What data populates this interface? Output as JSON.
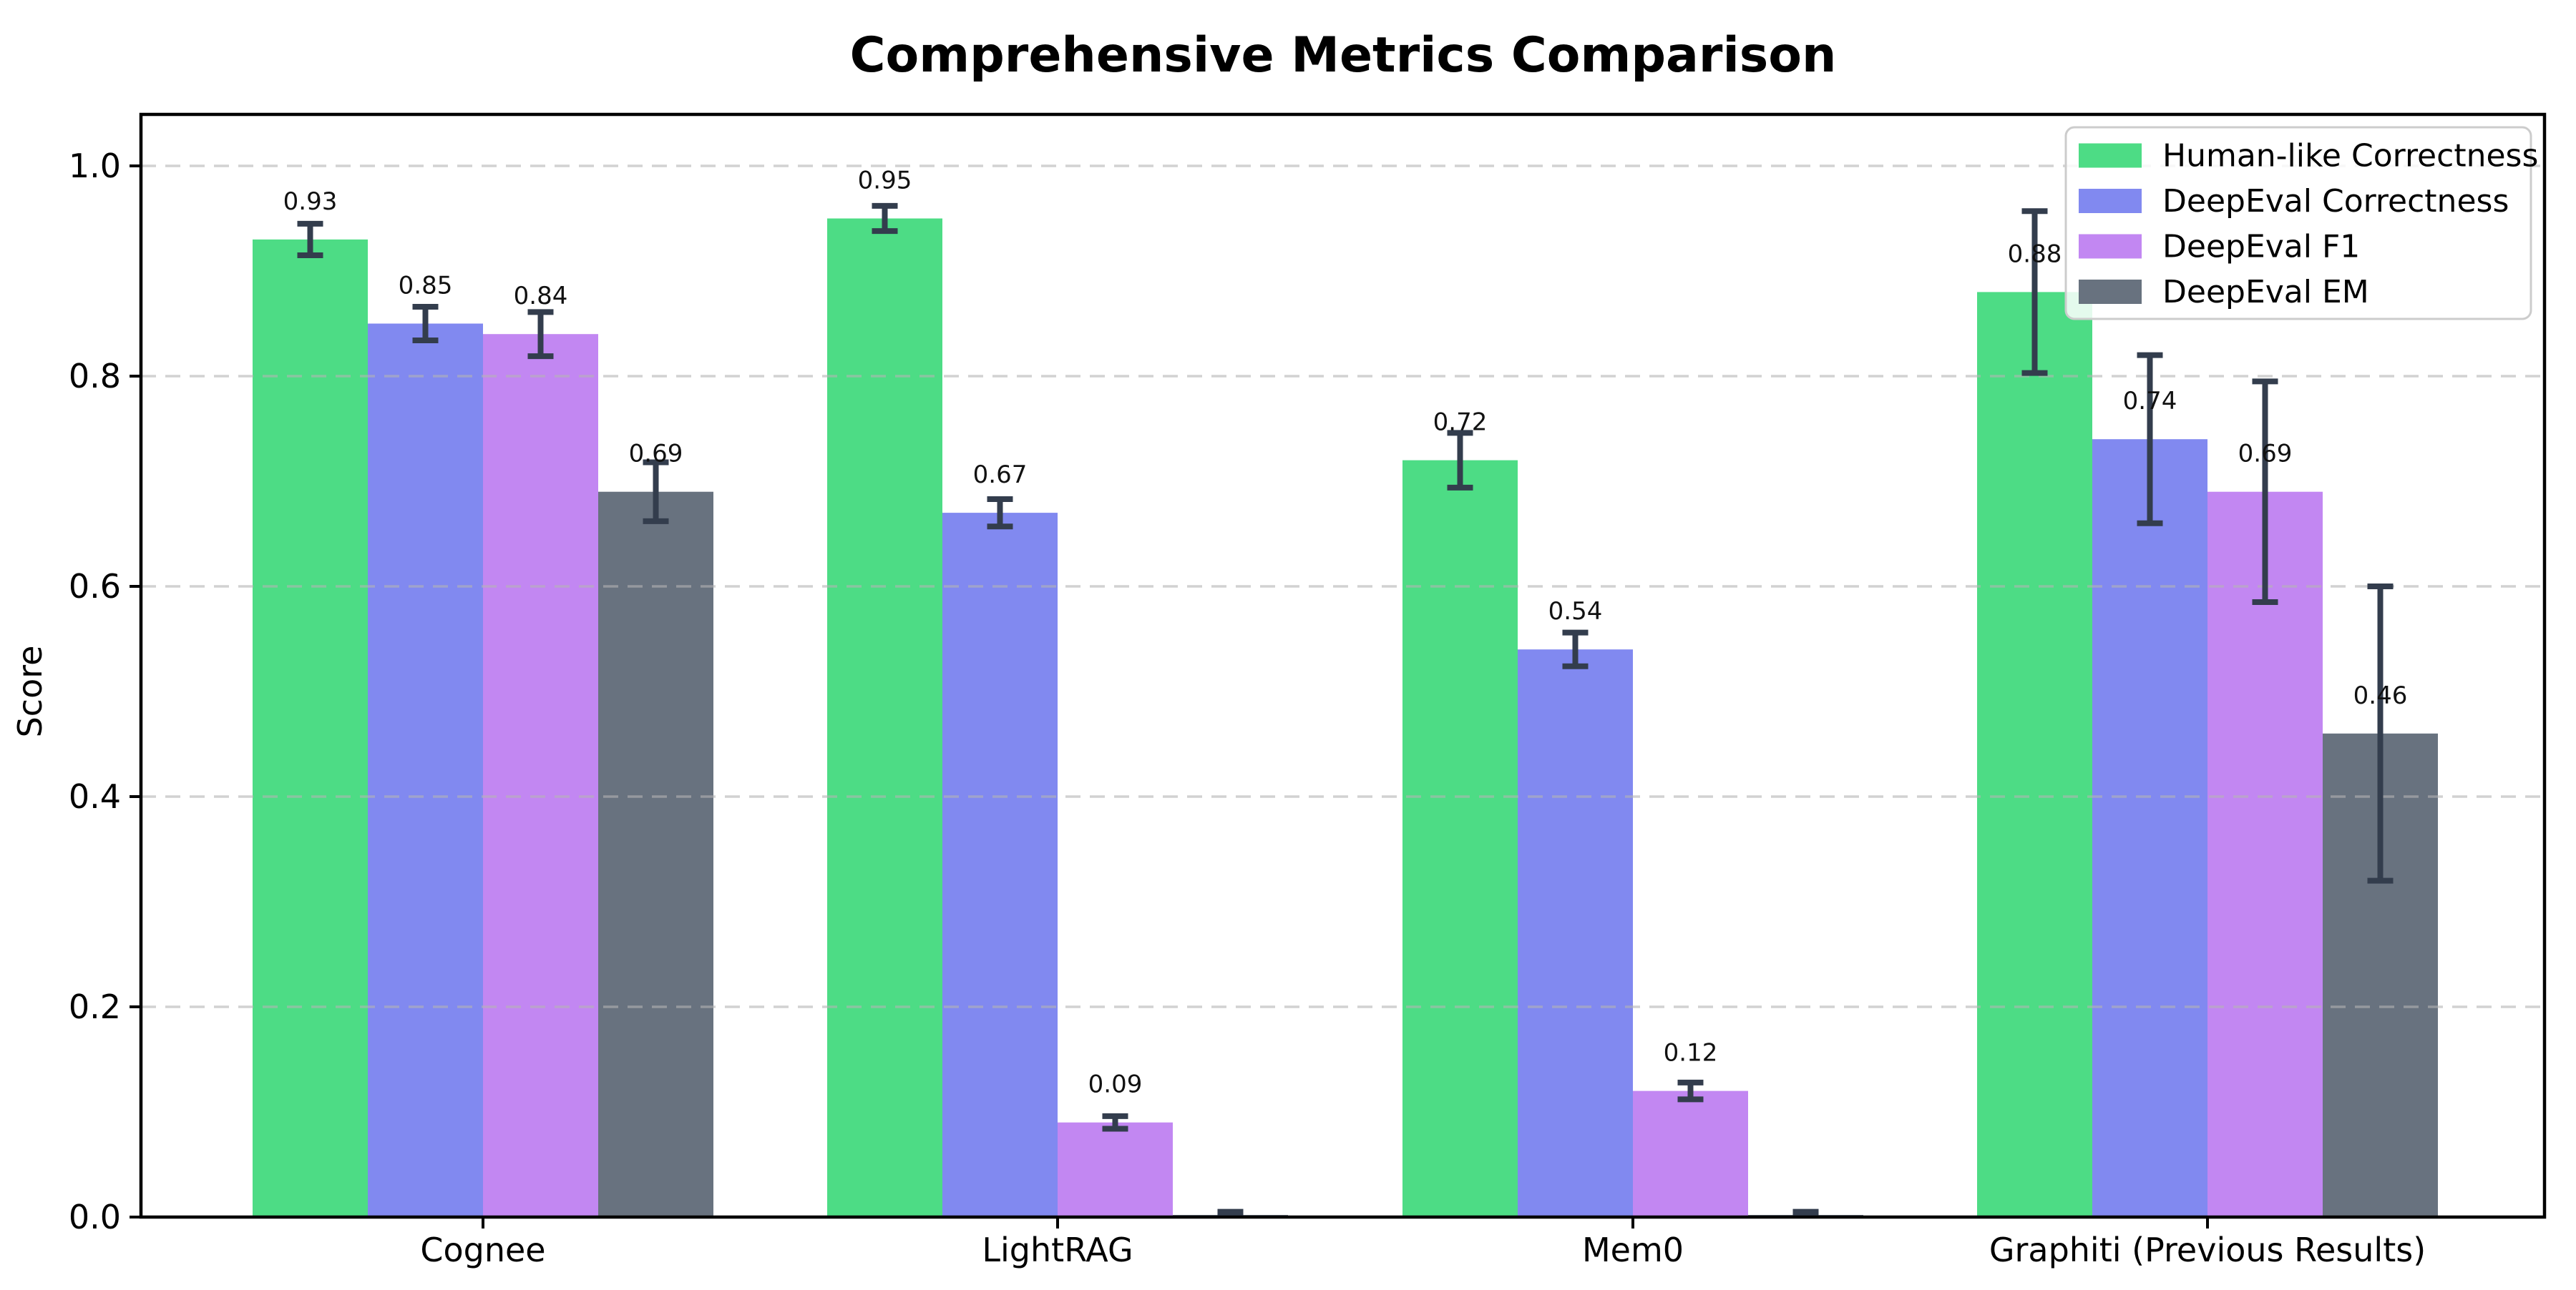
{
  "title": "Comprehensive Metrics Comparison",
  "chart_data": {
    "type": "bar",
    "title": "Comprehensive Metrics Comparison",
    "xlabel": "",
    "ylabel": "Score",
    "ylim": [
      0.0,
      1.05
    ],
    "yticks": [
      "0.0",
      "0.2",
      "0.4",
      "0.6",
      "0.8",
      "1.0"
    ],
    "grid": "horizontal-dashed",
    "legend_position": "upper-right",
    "categories": [
      "Cognee",
      "LightRAG",
      "Mem0",
      "Graphiti (Previous Results)"
    ],
    "series": [
      {
        "name": "Human-like Correctness",
        "color": "#4ddc85",
        "values": [
          0.93,
          0.95,
          0.72,
          0.88
        ],
        "errors": [
          0.015,
          0.012,
          0.026,
          0.077
        ],
        "labels": [
          "0.93",
          "0.95",
          "0.72",
          "0.88"
        ]
      },
      {
        "name": "DeepEval Correctness",
        "color": "#8189f0",
        "values": [
          0.85,
          0.67,
          0.54,
          0.74
        ],
        "errors": [
          0.016,
          0.013,
          0.016,
          0.08
        ],
        "labels": [
          "0.85",
          "0.67",
          "0.54",
          "0.74"
        ]
      },
      {
        "name": "DeepEval F1",
        "color": "#c287f2",
        "values": [
          0.84,
          0.09,
          0.12,
          0.69
        ],
        "errors": [
          0.021,
          0.006,
          0.008,
          0.105
        ],
        "labels": [
          "0.84",
          "0.09",
          "0.12",
          "0.69"
        ]
      },
      {
        "name": "DeepEval EM",
        "color": "#68727f",
        "values": [
          0.69,
          0.002,
          0.002,
          0.46
        ],
        "errors": [
          0.028,
          0.003,
          0.003,
          0.14
        ],
        "labels": [
          "0.69",
          "",
          "",
          "0.46"
        ]
      }
    ],
    "style": {
      "error_bar_color": "#333d4d",
      "grid_color": "rgba(180,180,180,0.6)",
      "axis_color": "#000000",
      "label_color": "#111111",
      "legend_border_color": "#cccccc",
      "legend_background": "rgba(255,255,255,0.85)"
    }
  }
}
